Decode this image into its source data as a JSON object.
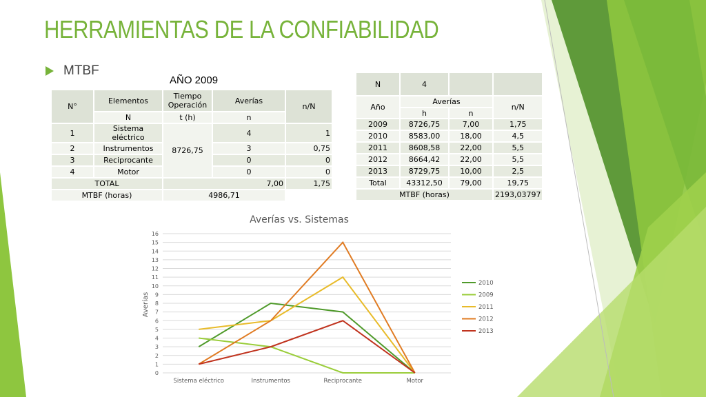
{
  "slide": {
    "title": "HERRAMIENTAS DE LA CONFIABILIDAD",
    "bullet": "MTBF",
    "year_label": "AÑO 2009"
  },
  "table1": {
    "header": {
      "n": "N°",
      "elementos": "Elementos",
      "tiempo": "Tiempo Operación",
      "averias": "Averías",
      "nN": "n/N"
    },
    "subheader": {
      "N": "N",
      "t": "t (h)",
      "n": "n"
    },
    "rows": [
      {
        "num": "1",
        "elemento": "Sistema eléctrico",
        "averias": "4",
        "nN": "1"
      },
      {
        "num": "2",
        "elemento": "Instrumentos",
        "averias": "3",
        "nN": "0,75"
      },
      {
        "num": "3",
        "elemento": "Reciprocante",
        "averias": "0",
        "nN": "0"
      },
      {
        "num": "4",
        "elemento": "Motor",
        "averias": "0",
        "nN": "0"
      }
    ],
    "tiempo_value": "8726,75",
    "total": {
      "label": "TOTAL",
      "averias": "7,00",
      "nN": "1,75"
    },
    "mtbf": {
      "label": "MTBF (horas)",
      "value": "4986,71"
    }
  },
  "table2": {
    "top": {
      "N": "N",
      "value": "4"
    },
    "header": {
      "anio": "Año",
      "averias": "Averías",
      "nN": "n/N",
      "h": "h",
      "n": "n"
    },
    "rows": [
      {
        "anio": "2009",
        "h": "8726,75",
        "n": "7,00",
        "nN": "1,75"
      },
      {
        "anio": "2010",
        "h": "8583,00",
        "n": "18,00",
        "nN": "4,5"
      },
      {
        "anio": "2011",
        "h": "8608,58",
        "n": "22,00",
        "nN": "5,5"
      },
      {
        "anio": "2012",
        "h": "8664,42",
        "n": "22,00",
        "nN": "5,5"
      },
      {
        "anio": "2013",
        "h": "8729,75",
        "n": "10,00",
        "nN": "2,5"
      },
      {
        "anio": "Total",
        "h": "43312,50",
        "n": "79,00",
        "nN": "19,75"
      }
    ],
    "mtbf": {
      "label": "MTBF (horas)",
      "value": "2193,03797"
    }
  },
  "chart_data": {
    "type": "line",
    "title": "Averías vs. Sistemas",
    "xlabel": "",
    "ylabel": "Averías",
    "categories": [
      "Sistema eléctrico",
      "Instrumentos",
      "Reciprocante",
      "Motor"
    ],
    "ylim": [
      0,
      16
    ],
    "yticks": [
      0,
      1,
      2,
      3,
      4,
      5,
      6,
      7,
      8,
      9,
      10,
      11,
      12,
      13,
      14,
      15,
      16
    ],
    "grid": true,
    "legend_position": "right",
    "series": [
      {
        "name": "2010",
        "color": "#4f9a2a",
        "values": [
          3,
          8,
          7,
          0
        ]
      },
      {
        "name": "2009",
        "color": "#9acd3a",
        "values": [
          4,
          3,
          0,
          0
        ]
      },
      {
        "name": "2011",
        "color": "#e8bb2a",
        "values": [
          5,
          6,
          11,
          0
        ]
      },
      {
        "name": "2012",
        "color": "#e07b22",
        "values": [
          1,
          6,
          15,
          0
        ]
      },
      {
        "name": "2013",
        "color": "#c0331e",
        "values": [
          1,
          3,
          6,
          0
        ]
      }
    ]
  },
  "colors": {
    "accent": "#77b33a",
    "dark_green": "#4e8a2a",
    "table_header": "#dde2d6"
  }
}
